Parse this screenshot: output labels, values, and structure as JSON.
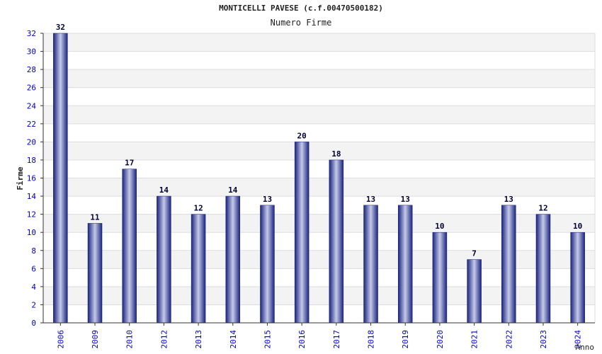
{
  "chart_data": {
    "type": "bar",
    "title": "MONTICELLI PAVESE (c.f.00470500182)",
    "subtitle": "Numero Firme",
    "xlabel": "Anno",
    "ylabel": "Firme",
    "categories": [
      "2006",
      "2009",
      "2010",
      "2012",
      "2013",
      "2014",
      "2015",
      "2016",
      "2017",
      "2018",
      "2019",
      "2020",
      "2021",
      "2022",
      "2023",
      "2024"
    ],
    "values": [
      32,
      11,
      17,
      14,
      12,
      14,
      13,
      20,
      18,
      13,
      13,
      10,
      7,
      13,
      12,
      10
    ],
    "ylim": [
      0,
      32
    ],
    "yticks": [
      0,
      2,
      4,
      6,
      8,
      10,
      12,
      14,
      16,
      18,
      20,
      22,
      24,
      26,
      28,
      30,
      32
    ],
    "grid": true,
    "colors": {
      "bar_dark": "#1a237e",
      "bar_light": "#c5cae9",
      "band": "#f3f3f3",
      "gridline": "#dddddd",
      "tick_label": "#0000cc",
      "value_label": "#000033"
    }
  }
}
